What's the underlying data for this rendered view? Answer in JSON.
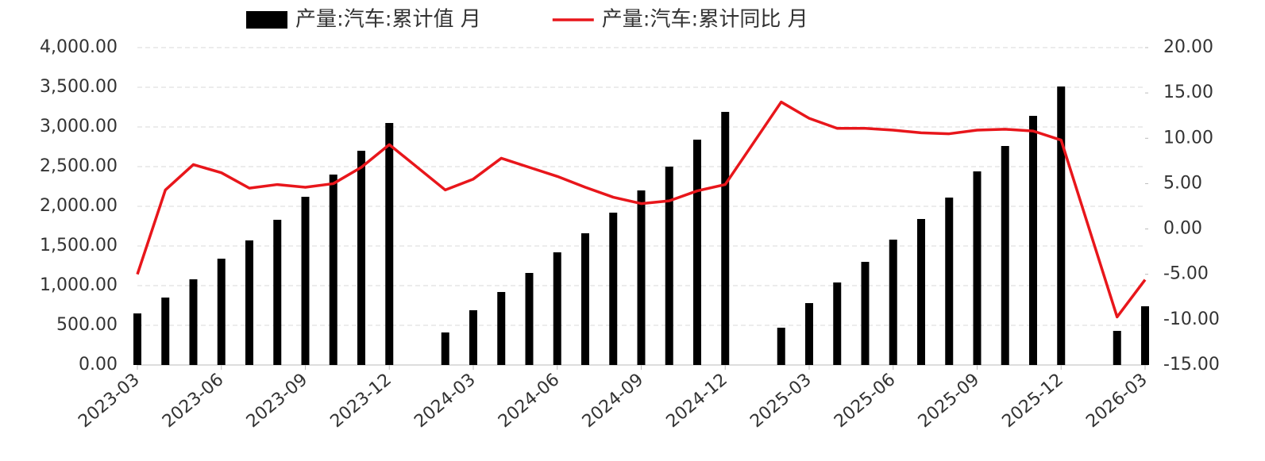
{
  "chart_data": {
    "type": "bar_line",
    "categories": [
      "2023-03",
      null,
      null,
      "2023-06",
      null,
      null,
      "2023-09",
      null,
      null,
      "2023-12",
      null,
      null,
      "2024-03",
      null,
      null,
      "2024-06",
      null,
      null,
      "2024-09",
      null,
      null,
      "2024-12",
      null,
      null,
      "2025-03",
      null,
      null,
      "2025-06",
      null,
      null,
      "2025-09",
      null,
      null,
      "2025-12",
      null,
      null,
      "2026-03"
    ],
    "series": [
      {
        "name": "产量:汽车:累计值 月",
        "type": "bar",
        "color": "#000000",
        "values": [
          650,
          850,
          1080,
          1340,
          1570,
          1830,
          2120,
          2400,
          2700,
          3050,
          null,
          410,
          690,
          920,
          1160,
          1420,
          1660,
          1920,
          2200,
          2500,
          2840,
          3190,
          null,
          470,
          780,
          1040,
          1300,
          1580,
          1840,
          2110,
          2440,
          2760,
          3140,
          3510,
          null,
          430,
          740
        ]
      },
      {
        "name": "产量:汽车:累计同比 月",
        "type": "line",
        "color": "#e8161b",
        "axis": "y2",
        "connect_gaps": true,
        "values": [
          -5.0,
          4.3,
          7.1,
          6.2,
          4.5,
          4.9,
          4.6,
          5.0,
          6.8,
          9.3,
          null,
          4.3,
          5.5,
          7.8,
          6.8,
          5.8,
          4.6,
          3.5,
          2.8,
          3.1,
          4.2,
          4.9,
          null,
          14.0,
          12.2,
          11.1,
          11.1,
          10.9,
          10.6,
          10.5,
          10.9,
          11.0,
          10.8,
          9.8,
          null,
          -9.7,
          -5.6
        ]
      }
    ],
    "ylim": [
      0,
      4000
    ],
    "yticks": [
      {
        "value": 0,
        "label": "0.00"
      },
      {
        "value": 500,
        "label": "500.00"
      },
      {
        "value": 1000,
        "label": "1,000.00"
      },
      {
        "value": 1500,
        "label": "1,500.00"
      },
      {
        "value": 2000,
        "label": "2,000.00"
      },
      {
        "value": 2500,
        "label": "2,500.00"
      },
      {
        "value": 3000,
        "label": "3,000.00"
      },
      {
        "value": 3500,
        "label": "3,500.00"
      },
      {
        "value": 4000,
        "label": "4,000.00"
      }
    ],
    "y2lim": [
      -15,
      20
    ],
    "y2ticks": [
      {
        "value": -15,
        "label": "-15.00"
      },
      {
        "value": -10,
        "label": "-10.00"
      },
      {
        "value": -5,
        "label": "-5.00"
      },
      {
        "value": 0,
        "label": "0.00"
      },
      {
        "value": 5,
        "label": "5.00"
      },
      {
        "value": 10,
        "label": "10.00"
      },
      {
        "value": 15,
        "label": "15.00"
      },
      {
        "value": 20,
        "label": "20.00"
      }
    ],
    "grid": true,
    "legend": "top"
  }
}
